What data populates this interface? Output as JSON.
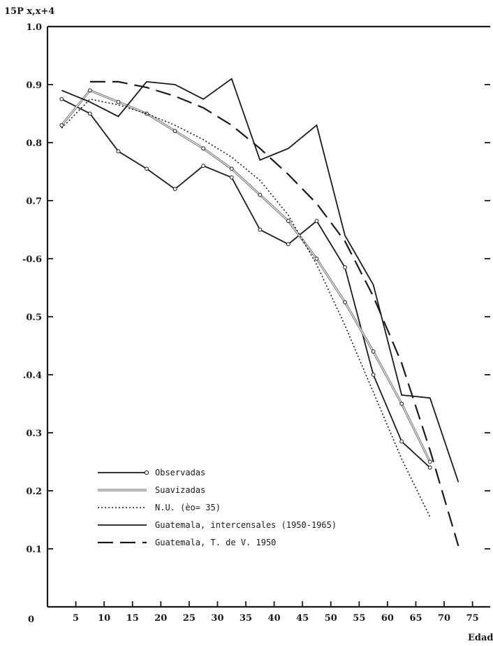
{
  "chart_data": {
    "type": "line",
    "ylabel": "15P x,x+4",
    "xlabel": "Edad",
    "xlim": [
      0,
      75
    ],
    "ylim": [
      0,
      1.0
    ],
    "x_ticks": [
      5,
      10,
      15,
      20,
      25,
      30,
      35,
      40,
      45,
      50,
      55,
      60,
      65,
      70,
      75
    ],
    "x_zero_label": "0",
    "y_ticks": [
      {
        "value": 0.1,
        "label": "0.1"
      },
      {
        "value": 0.2,
        "label": "0.2"
      },
      {
        "value": 0.3,
        "label": "0.3"
      },
      {
        "value": 0.4,
        "label": ".0.4"
      },
      {
        "value": 0.5,
        "label": "0.5"
      },
      {
        "value": 0.6,
        "label": "-0.6"
      },
      {
        "value": 0.7,
        "label": "0.7"
      },
      {
        "value": 0.8,
        "label": "0.8"
      },
      {
        "value": 0.9,
        "label": "0.9"
      },
      {
        "value": 1.0,
        "label": "1.0"
      }
    ],
    "grid": false,
    "legend_position": "bottom-left",
    "series": [
      {
        "name": "Observadas",
        "style": "solid-circles",
        "color": "#1a1a1a",
        "x": [
          2.5,
          7.5,
          12.5,
          17.5,
          22.5,
          27.5,
          32.5,
          37.5,
          42.5,
          47.5,
          52.5,
          57.5,
          62.5,
          67.5
        ],
        "y": [
          0.875,
          0.85,
          0.785,
          0.755,
          0.72,
          0.76,
          0.74,
          0.65,
          0.625,
          0.665,
          0.585,
          0.4,
          0.285,
          0.24
        ]
      },
      {
        "name": "Suavizadas",
        "style": "double",
        "color": "#1a1a1a",
        "x": [
          2.5,
          7.5,
          12.5,
          17.5,
          22.5,
          27.5,
          32.5,
          37.5,
          42.5,
          47.5,
          52.5,
          57.5,
          62.5,
          67.5
        ],
        "y": [
          0.83,
          0.89,
          0.87,
          0.85,
          0.82,
          0.79,
          0.755,
          0.71,
          0.665,
          0.6,
          0.525,
          0.44,
          0.35,
          0.25
        ]
      },
      {
        "name": "N.U. (e0 = 35)",
        "style": "dotted",
        "color": "#1a1a1a",
        "x": [
          2.5,
          7.5,
          12.5,
          17.5,
          22.5,
          27.5,
          32.5,
          37.5,
          42.5,
          47.5,
          52.5,
          57.5,
          62.5,
          67.5
        ],
        "y": [
          0.825,
          0.875,
          0.865,
          0.85,
          0.83,
          0.805,
          0.775,
          0.735,
          0.675,
          0.59,
          0.485,
          0.37,
          0.255,
          0.155
        ]
      },
      {
        "name": "Guatemala, intercensales (1950-1965)",
        "style": "solid",
        "color": "#1a1a1a",
        "x": [
          2.5,
          7.5,
          12.5,
          17.5,
          22.5,
          27.5,
          32.5,
          37.5,
          42.5,
          47.5,
          52.5,
          57.5,
          62.5,
          67.5,
          72.5
        ],
        "y": [
          0.89,
          0.87,
          0.845,
          0.905,
          0.9,
          0.875,
          0.91,
          0.77,
          0.79,
          0.83,
          0.64,
          0.555,
          0.365,
          0.36,
          0.215
        ]
      },
      {
        "name": "Guatemala, T. de V. 1950",
        "style": "dashed",
        "color": "#1a1a1a",
        "x": [
          7.5,
          12.5,
          17.5,
          22.5,
          27.5,
          32.5,
          37.5,
          42.5,
          47.5,
          52.5,
          57.5,
          62.5,
          67.5,
          72.5
        ],
        "y": [
          0.905,
          0.905,
          0.895,
          0.88,
          0.86,
          0.83,
          0.79,
          0.745,
          0.695,
          0.63,
          0.535,
          0.42,
          0.27,
          0.105
        ]
      }
    ],
    "legend_labels": [
      "Observadas",
      "Suavizadas",
      "N.U. (èo= 35)",
      "Guatemala, intercensales (1950-1965)",
      "Guatemala, T. de V. 1950"
    ]
  }
}
